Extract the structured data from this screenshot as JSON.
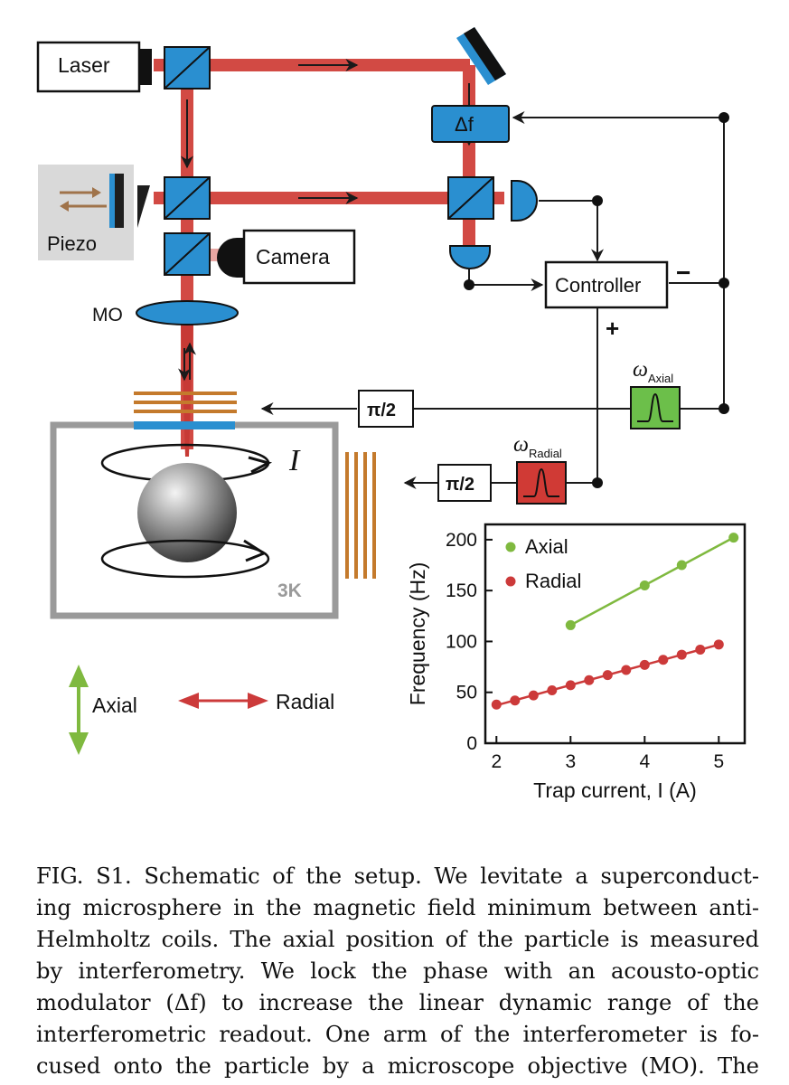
{
  "colors": {
    "beam": "#d24a44",
    "beam_dark": "#c73a35",
    "optic_blue": "#2a8fd0",
    "coil_orange": "#c47a2c",
    "cryostat_gray": "#9a9a9a",
    "axial_green": "#7fb93f",
    "radial_red": "#cc3a3a",
    "filter_green_fill": "#6cbf4a",
    "filter_red_fill": "#d03a35",
    "piezo_box": "#d9d9d9"
  },
  "labels": {
    "laser": "Laser",
    "camera": "Camera",
    "controller": "Controller",
    "piezo": "Piezo",
    "mo": "MO",
    "delta_f": "Δf",
    "minus": "−",
    "plus": "+",
    "phase_shift_axial": "π/2",
    "phase_shift_radial": "π/2",
    "omega_axial": "ω",
    "omega_axial_sub": "Axial",
    "omega_radial": "ω",
    "omega_radial_sub": "Radial",
    "current": "I",
    "temperature": "3K",
    "legend_axial": "Axial",
    "legend_radial": "Radial"
  },
  "icons": [
    "beamsplitter-icon",
    "mirror-icon",
    "photodetector-icon",
    "lens-icon",
    "bandpass-filter-icon",
    "double-arrow-icon"
  ],
  "chart_data": {
    "type": "scatter",
    "xlabel": "Trap current, I (A)",
    "ylabel": "Frequency (Hz)",
    "xlim": [
      1.85,
      5.35
    ],
    "ylim": [
      0,
      215
    ],
    "xticks": [
      2,
      3,
      4,
      5
    ],
    "yticks": [
      0,
      50,
      100,
      150,
      200
    ],
    "legend_position": "top-left",
    "grid": false,
    "series": [
      {
        "name": "Axial",
        "color": "#7fb93f",
        "x": [
          3.0,
          4.0,
          4.5,
          5.2
        ],
        "y": [
          116,
          155,
          175,
          202
        ]
      },
      {
        "name": "Radial",
        "color": "#cc3a3a",
        "x": [
          2.0,
          2.25,
          2.5,
          2.75,
          3.0,
          3.25,
          3.5,
          3.75,
          4.0,
          4.25,
          4.5,
          4.75,
          5.0
        ],
        "y": [
          38,
          42,
          47,
          52,
          57,
          62,
          67,
          72,
          77,
          82,
          87,
          92,
          97
        ]
      }
    ]
  },
  "caption": {
    "lines": [
      "FIG. S1. Schematic of the setup. We levitate a superconduct-",
      "ing microsphere in the magnetic field minimum between anti-",
      "Helmholtz coils. The axial position of the particle is measured",
      "by interferometry. We lock the phase with an acousto-optic",
      "modulator (Δf) to increase the linear dynamic range of the",
      "interferometric readout. One arm of the interferometer is fo-",
      "cused onto the particle by a microscope objective (MO). The"
    ]
  }
}
